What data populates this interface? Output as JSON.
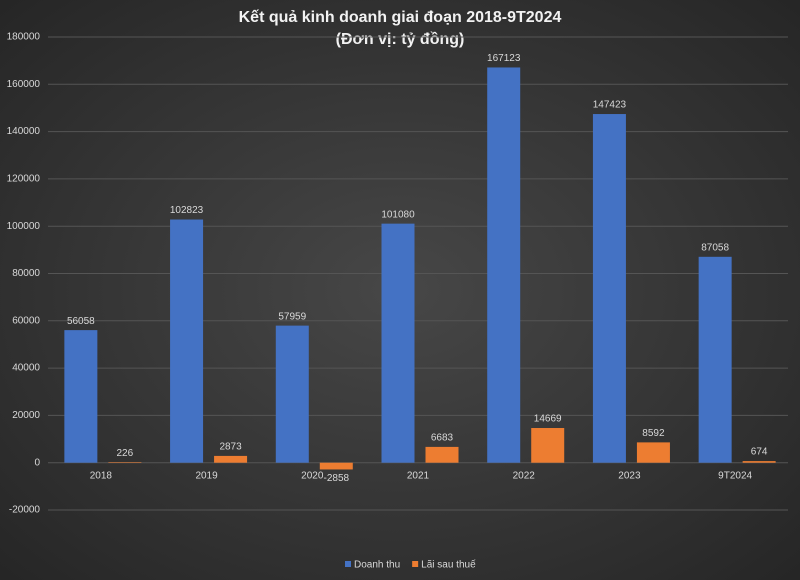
{
  "chart_data": {
    "type": "bar",
    "title": "Kết quả kinh doanh giai đoạn 2018-9T2024",
    "subtitle": "(Đơn vị: tỷ đồng)",
    "categories": [
      "2018",
      "2019",
      "2020",
      "2021",
      "2022",
      "2023",
      "9T2024"
    ],
    "series": [
      {
        "name": "Doanh thu",
        "color": "#4472c4",
        "values": [
          56058,
          102823,
          57959,
          101080,
          167123,
          147423,
          87058
        ]
      },
      {
        "name": "Lãi sau thuế",
        "color": "#ed7d31",
        "values": [
          226,
          2873,
          -2858,
          6683,
          14669,
          8592,
          674
        ]
      }
    ],
    "ylim": [
      -20000,
      180000
    ],
    "yticks": [
      -20000,
      0,
      20000,
      40000,
      60000,
      80000,
      100000,
      120000,
      140000,
      160000,
      180000
    ],
    "grid": true,
    "legend": "bottom"
  }
}
